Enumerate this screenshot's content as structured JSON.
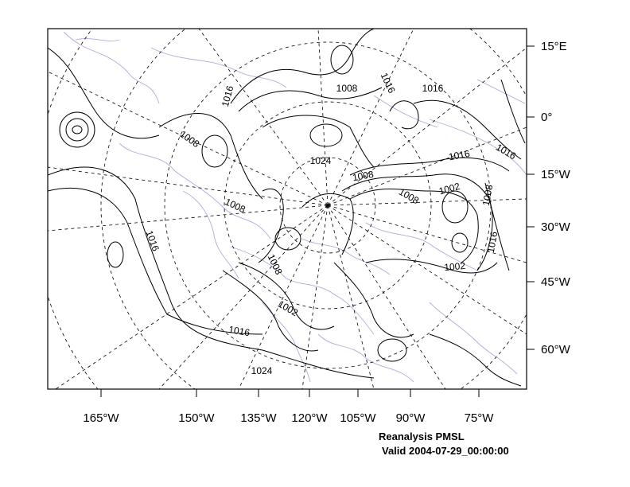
{
  "caption": {
    "title": "Reanalysis PMSL",
    "valid": "Valid 2004-07-29_00:00:00"
  },
  "axes": {
    "bottom_labels": [
      "165°W",
      "150°W",
      "135°W",
      "120°W",
      "105°W",
      "90°W",
      "75°W"
    ],
    "right_labels": [
      "15°E",
      "0°",
      "15°W",
      "30°W",
      "45°W",
      "60°W"
    ]
  },
  "contour_labels": [
    "1016",
    "1008",
    "1016",
    "1016",
    "1008",
    "1024",
    "1008",
    "1016",
    "1016",
    "1008",
    "1008",
    "1002",
    "1008",
    "1008",
    "1016",
    "1016",
    "1002",
    "1008",
    "1002",
    "1016",
    "1024"
  ],
  "colors": {
    "contour": "#000000",
    "grid": "#000000",
    "coastline": "#b9a6d8"
  }
}
